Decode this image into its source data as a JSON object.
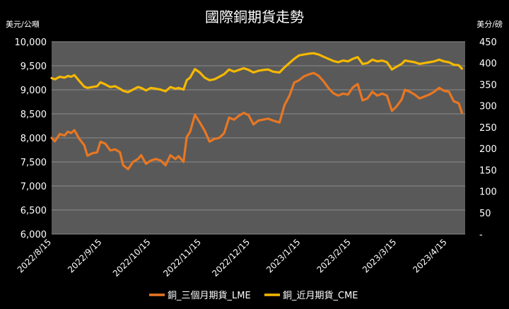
{
  "chart_data": {
    "type": "line",
    "title": "國際銅期貨走勢",
    "ylabel_left": "美元/公噸",
    "ylabel_right": "美分/磅",
    "ylim_left": [
      6000,
      10000
    ],
    "ylim_right": [
      0,
      450
    ],
    "y_ticks_left": [
      "6,000",
      "6,500",
      "7,000",
      "7,500",
      "8,000",
      "8,500",
      "9,000",
      "9,500",
      "10,000"
    ],
    "y_ticks_right": [
      "-",
      "50",
      "100",
      "150",
      "200",
      "250",
      "300",
      "350",
      "400",
      "450"
    ],
    "x_ticks": [
      "2022/8/15",
      "2022/9/15",
      "2022/10/15",
      "2022/11/15",
      "2022/12/15",
      "2023/1/15",
      "2023/2/15",
      "2023/3/15",
      "2023/4/15"
    ],
    "x_range": [
      "2022-08-15",
      "2023-04-26"
    ],
    "grid": true,
    "legend_position": "bottom",
    "series": [
      {
        "name": "銅_三個月期貨_LME",
        "axis": "left",
        "color": "#E87722",
        "points": [
          [
            "2022-08-15",
            8000
          ],
          [
            "2022-08-17",
            7930
          ],
          [
            "2022-08-20",
            8080
          ],
          [
            "2022-08-23",
            8050
          ],
          [
            "2022-08-25",
            8130
          ],
          [
            "2022-08-27",
            8100
          ],
          [
            "2022-08-29",
            8160
          ],
          [
            "2022-09-01",
            7980
          ],
          [
            "2022-09-04",
            7850
          ],
          [
            "2022-09-06",
            7630
          ],
          [
            "2022-09-09",
            7680
          ],
          [
            "2022-09-12",
            7700
          ],
          [
            "2022-09-14",
            7920
          ],
          [
            "2022-09-17",
            7880
          ],
          [
            "2022-09-20",
            7740
          ],
          [
            "2022-09-23",
            7760
          ],
          [
            "2022-09-26",
            7700
          ],
          [
            "2022-09-28",
            7430
          ],
          [
            "2022-10-01",
            7350
          ],
          [
            "2022-10-04",
            7500
          ],
          [
            "2022-10-07",
            7560
          ],
          [
            "2022-10-09",
            7640
          ],
          [
            "2022-10-12",
            7460
          ],
          [
            "2022-10-15",
            7530
          ],
          [
            "2022-10-18",
            7560
          ],
          [
            "2022-10-21",
            7530
          ],
          [
            "2022-10-24",
            7430
          ],
          [
            "2022-10-27",
            7640
          ],
          [
            "2022-10-30",
            7560
          ],
          [
            "2022-11-01",
            7620
          ],
          [
            "2022-11-04",
            7500
          ],
          [
            "2022-11-06",
            8020
          ],
          [
            "2022-11-08",
            8120
          ],
          [
            "2022-11-11",
            8480
          ],
          [
            "2022-11-14",
            8320
          ],
          [
            "2022-11-17",
            8150
          ],
          [
            "2022-11-20",
            7920
          ],
          [
            "2022-11-23",
            7980
          ],
          [
            "2022-11-26",
            8000
          ],
          [
            "2022-11-29",
            8100
          ],
          [
            "2022-12-02",
            8420
          ],
          [
            "2022-12-05",
            8380
          ],
          [
            "2022-12-08",
            8460
          ],
          [
            "2022-12-11",
            8520
          ],
          [
            "2022-12-14",
            8470
          ],
          [
            "2022-12-17",
            8280
          ],
          [
            "2022-12-20",
            8360
          ],
          [
            "2022-12-23",
            8380
          ],
          [
            "2022-12-26",
            8400
          ],
          [
            "2022-12-29",
            8360
          ],
          [
            "2023-01-02",
            8320
          ],
          [
            "2023-01-05",
            8680
          ],
          [
            "2023-01-08",
            8870
          ],
          [
            "2023-01-11",
            9150
          ],
          [
            "2023-01-14",
            9200
          ],
          [
            "2023-01-17",
            9280
          ],
          [
            "2023-01-20",
            9320
          ],
          [
            "2023-01-23",
            9350
          ],
          [
            "2023-01-26",
            9290
          ],
          [
            "2023-01-29",
            9180
          ],
          [
            "2023-02-01",
            9040
          ],
          [
            "2023-02-04",
            8930
          ],
          [
            "2023-02-07",
            8880
          ],
          [
            "2023-02-10",
            8920
          ],
          [
            "2023-02-13",
            8900
          ],
          [
            "2023-02-16",
            9050
          ],
          [
            "2023-02-19",
            9120
          ],
          [
            "2023-02-22",
            8780
          ],
          [
            "2023-02-25",
            8820
          ],
          [
            "2023-02-28",
            8960
          ],
          [
            "2023-03-03",
            8880
          ],
          [
            "2023-03-06",
            8920
          ],
          [
            "2023-03-09",
            8880
          ],
          [
            "2023-03-12",
            8560
          ],
          [
            "2023-03-15",
            8660
          ],
          [
            "2023-03-18",
            8800
          ],
          [
            "2023-03-20",
            9000
          ],
          [
            "2023-03-23",
            8960
          ],
          [
            "2023-03-26",
            8900
          ],
          [
            "2023-03-29",
            8820
          ],
          [
            "2023-04-01",
            8860
          ],
          [
            "2023-04-04",
            8900
          ],
          [
            "2023-04-07",
            8960
          ],
          [
            "2023-04-10",
            9040
          ],
          [
            "2023-04-13",
            8980
          ],
          [
            "2023-04-16",
            8960
          ],
          [
            "2023-04-19",
            8760
          ],
          [
            "2023-04-22",
            8720
          ],
          [
            "2023-04-24",
            8520
          ]
        ]
      },
      {
        "name": "銅_近月期貨_CME",
        "axis": "right",
        "color": "#F5B800",
        "points": [
          [
            "2022-08-15",
            365
          ],
          [
            "2022-08-17",
            362
          ],
          [
            "2022-08-20",
            368
          ],
          [
            "2022-08-23",
            366
          ],
          [
            "2022-08-25",
            370
          ],
          [
            "2022-08-27",
            368
          ],
          [
            "2022-08-29",
            372
          ],
          [
            "2022-09-01",
            358
          ],
          [
            "2022-09-04",
            345
          ],
          [
            "2022-09-06",
            342
          ],
          [
            "2022-09-09",
            344
          ],
          [
            "2022-09-12",
            346
          ],
          [
            "2022-09-14",
            355
          ],
          [
            "2022-09-17",
            350
          ],
          [
            "2022-09-20",
            344
          ],
          [
            "2022-09-23",
            346
          ],
          [
            "2022-09-26",
            340
          ],
          [
            "2022-09-28",
            335
          ],
          [
            "2022-10-01",
            332
          ],
          [
            "2022-10-04",
            338
          ],
          [
            "2022-10-07",
            344
          ],
          [
            "2022-10-09",
            342
          ],
          [
            "2022-10-12",
            336
          ],
          [
            "2022-10-15",
            342
          ],
          [
            "2022-10-18",
            340
          ],
          [
            "2022-10-21",
            338
          ],
          [
            "2022-10-24",
            334
          ],
          [
            "2022-10-27",
            344
          ],
          [
            "2022-10-30",
            340
          ],
          [
            "2022-11-01",
            342
          ],
          [
            "2022-11-04",
            338
          ],
          [
            "2022-11-06",
            360
          ],
          [
            "2022-11-08",
            366
          ],
          [
            "2022-11-11",
            386
          ],
          [
            "2022-11-14",
            378
          ],
          [
            "2022-11-17",
            366
          ],
          [
            "2022-11-20",
            360
          ],
          [
            "2022-11-23",
            362
          ],
          [
            "2022-11-26",
            368
          ],
          [
            "2022-11-29",
            374
          ],
          [
            "2022-12-02",
            385
          ],
          [
            "2022-12-05",
            380
          ],
          [
            "2022-12-08",
            384
          ],
          [
            "2022-12-11",
            388
          ],
          [
            "2022-12-14",
            384
          ],
          [
            "2022-12-17",
            378
          ],
          [
            "2022-12-20",
            382
          ],
          [
            "2022-12-23",
            384
          ],
          [
            "2022-12-26",
            385
          ],
          [
            "2022-12-29",
            380
          ],
          [
            "2023-01-02",
            378
          ],
          [
            "2023-01-05",
            390
          ],
          [
            "2023-01-08",
            400
          ],
          [
            "2023-01-11",
            410
          ],
          [
            "2023-01-14",
            418
          ],
          [
            "2023-01-17",
            420
          ],
          [
            "2023-01-20",
            422
          ],
          [
            "2023-01-23",
            423
          ],
          [
            "2023-01-26",
            420
          ],
          [
            "2023-01-29",
            415
          ],
          [
            "2023-02-01",
            410
          ],
          [
            "2023-02-04",
            405
          ],
          [
            "2023-02-07",
            402
          ],
          [
            "2023-02-10",
            406
          ],
          [
            "2023-02-13",
            404
          ],
          [
            "2023-02-16",
            410
          ],
          [
            "2023-02-19",
            414
          ],
          [
            "2023-02-22",
            398
          ],
          [
            "2023-02-25",
            400
          ],
          [
            "2023-02-28",
            408
          ],
          [
            "2023-03-03",
            404
          ],
          [
            "2023-03-06",
            406
          ],
          [
            "2023-03-09",
            402
          ],
          [
            "2023-03-12",
            385
          ],
          [
            "2023-03-15",
            392
          ],
          [
            "2023-03-18",
            398
          ],
          [
            "2023-03-20",
            406
          ],
          [
            "2023-03-23",
            404
          ],
          [
            "2023-03-26",
            402
          ],
          [
            "2023-03-29",
            398
          ],
          [
            "2023-04-01",
            400
          ],
          [
            "2023-04-04",
            402
          ],
          [
            "2023-04-07",
            404
          ],
          [
            "2023-04-10",
            408
          ],
          [
            "2023-04-13",
            404
          ],
          [
            "2023-04-16",
            402
          ],
          [
            "2023-04-19",
            396
          ],
          [
            "2023-04-22",
            395
          ],
          [
            "2023-04-24",
            387
          ]
        ]
      }
    ]
  }
}
